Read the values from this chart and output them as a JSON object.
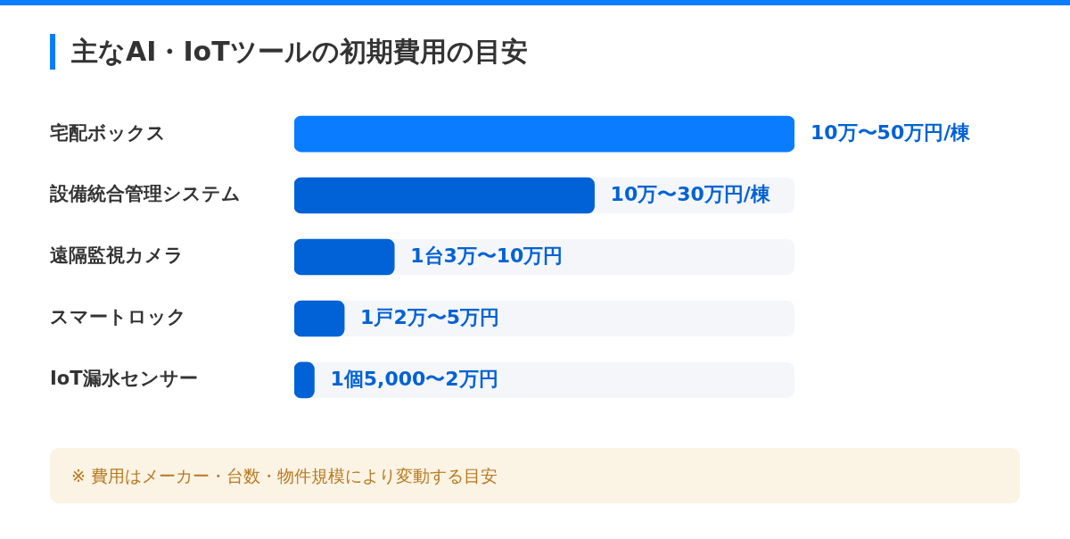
{
  "chart_data": {
    "type": "bar",
    "orientation": "horizontal",
    "xlim": [
      0,
      50
    ],
    "tick_labels": "y",
    "title": "主なAI・IoTツールの初期費用の目安",
    "categories": [
      "宅配ボックス",
      "設備統合管理システム",
      "遠隔監視カメラ",
      "スマートロック",
      "IoT漏水センサー"
    ],
    "values": [
      50,
      30,
      10,
      5,
      2
    ],
    "colors": [
      "#0a7cff",
      "#0062d6",
      "#0062d6",
      "#0062d6",
      "#0062d6"
    ],
    "value_labels": [
      "10万〜50万円/棟",
      "10万〜30万円/棟",
      "1台3万〜10万円",
      "1戸2万〜5万円",
      "1個5,000〜2万円"
    ],
    "annotations": [
      "※ 費用はメーカー・台数・物件規模により変動する目安"
    ],
    "legend": false
  }
}
